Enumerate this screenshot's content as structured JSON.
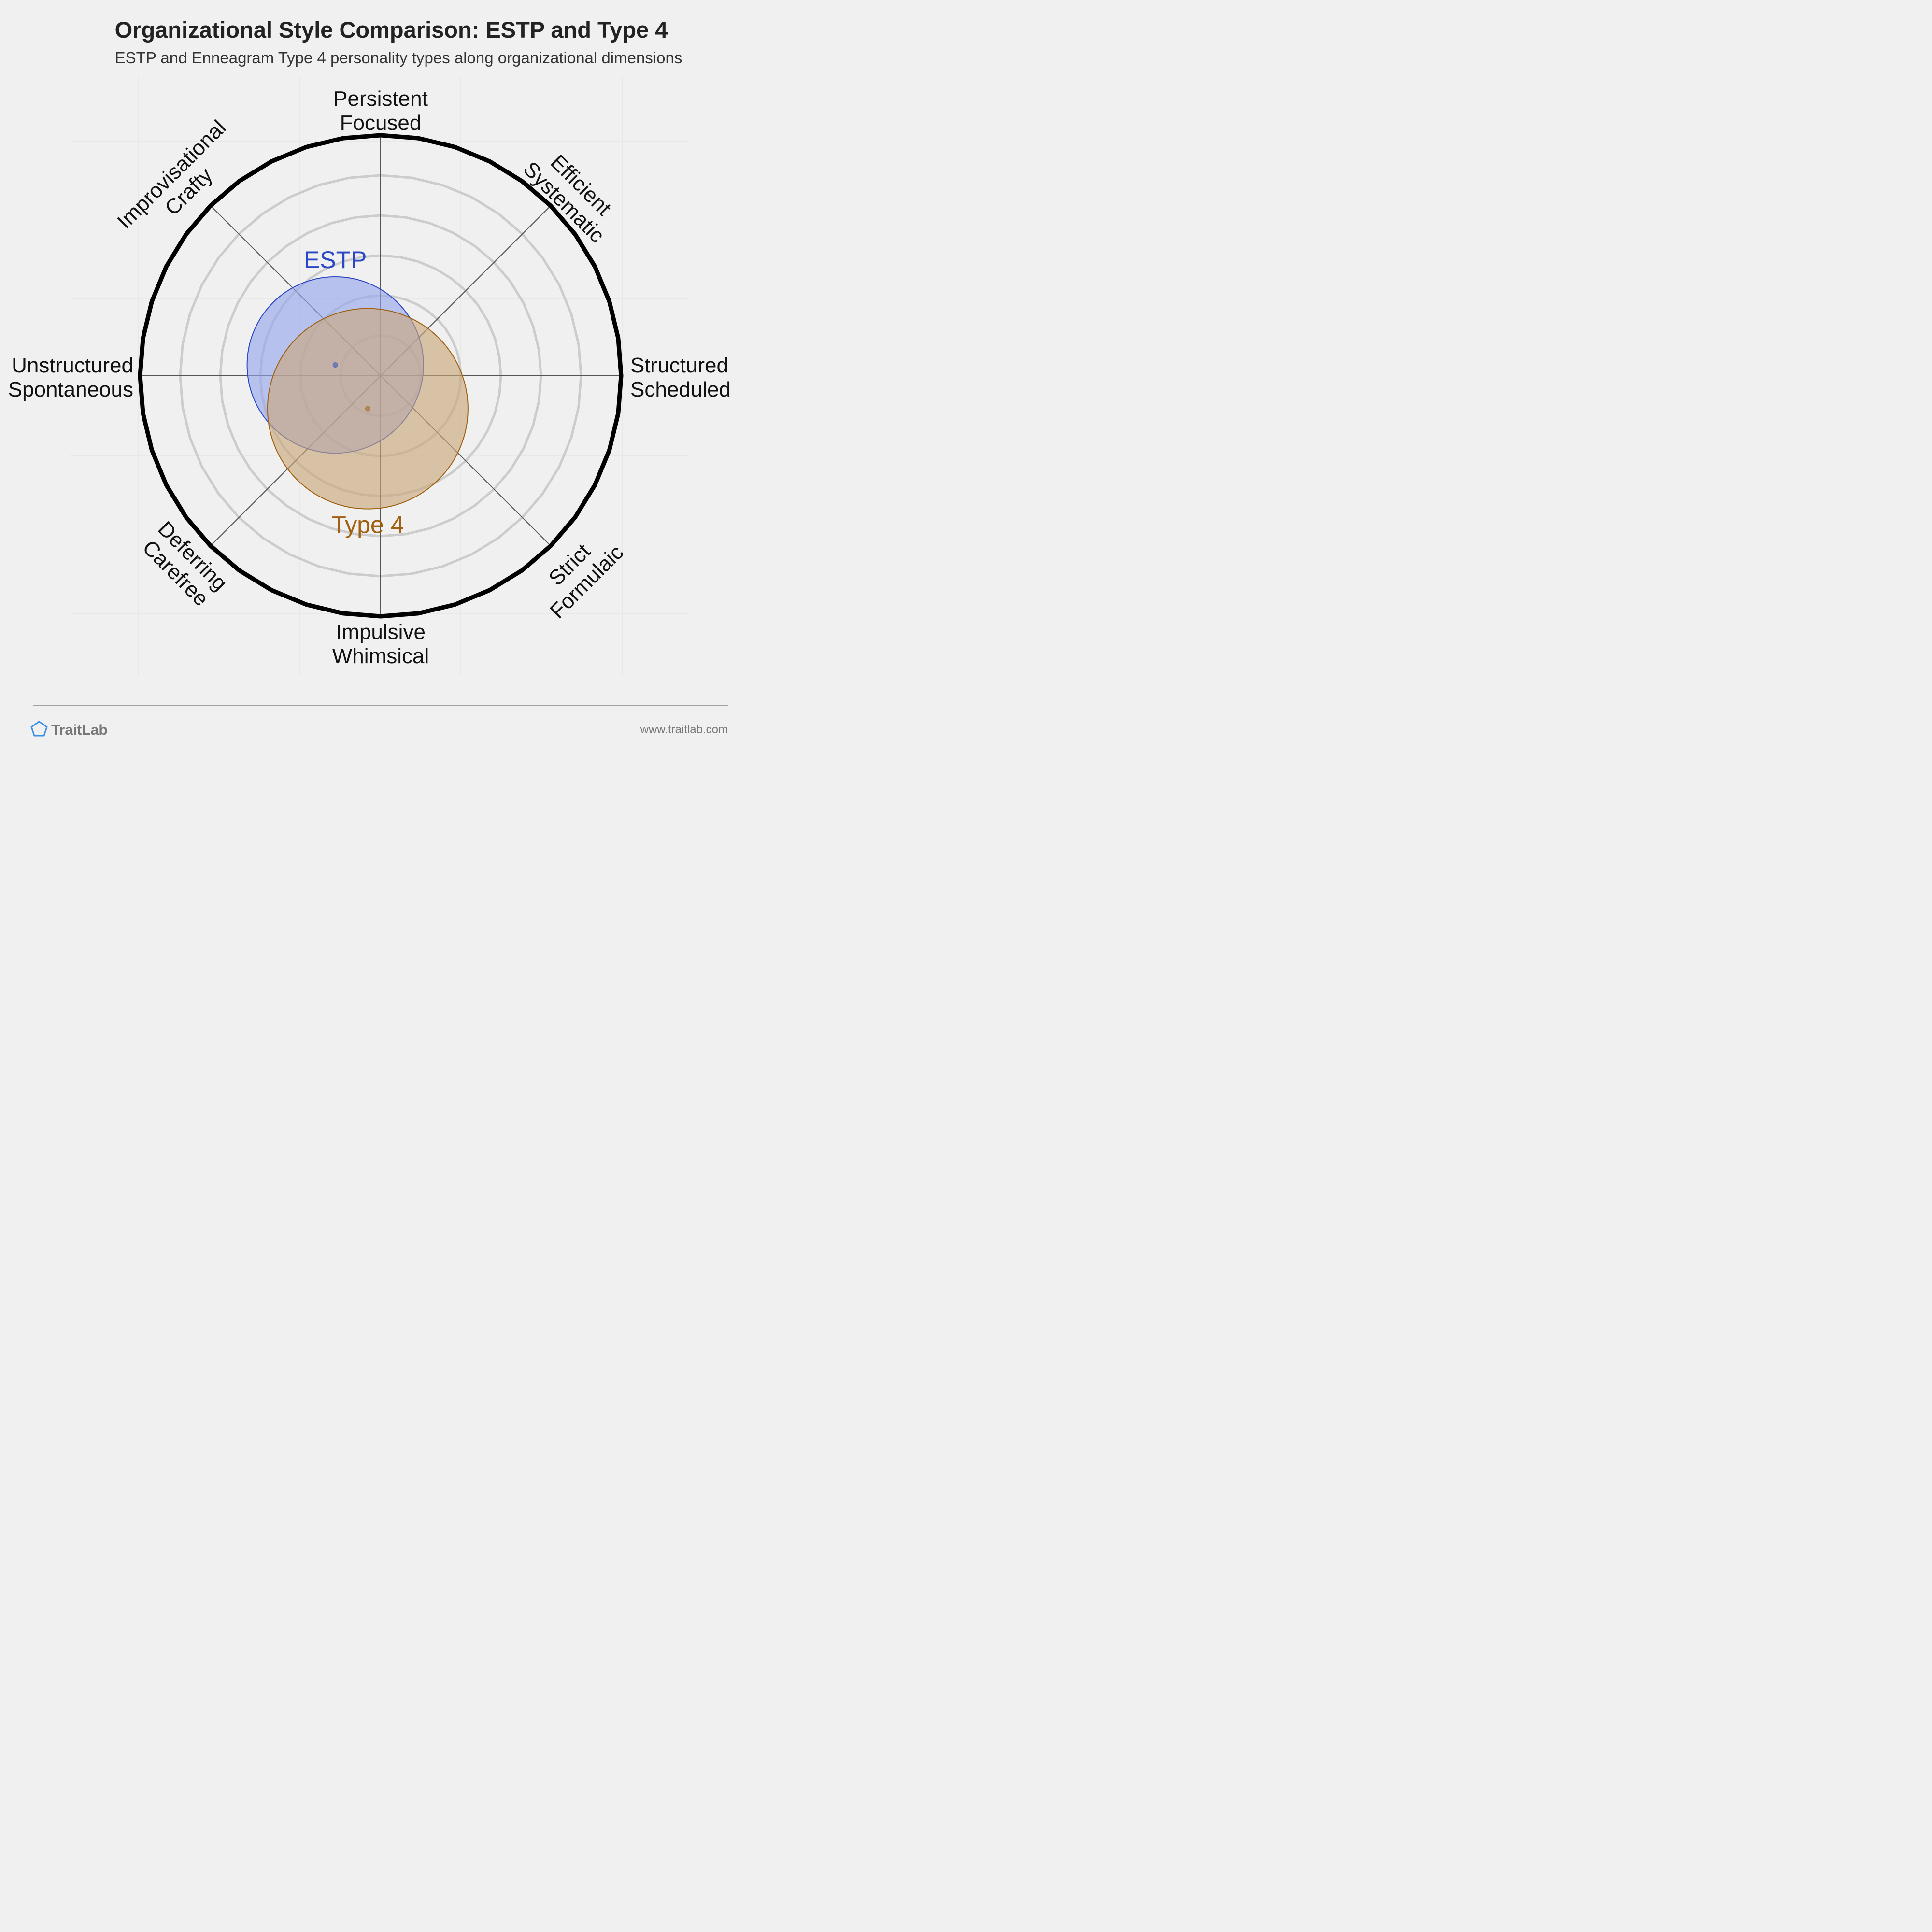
{
  "chart_data": {
    "type": "scatter",
    "title": "Organizational Style Comparison: ESTP and Type 4",
    "subtitle": "ESTP and Enneagram Type 4 personality types along organizational dimensions",
    "axes": {
      "top": [
        "Persistent",
        "Focused"
      ],
      "top_right": [
        "Efficient",
        "Systematic"
      ],
      "right": [
        "Structured",
        "Scheduled"
      ],
      "bottom_right": [
        "Strict",
        "Formulaic"
      ],
      "bottom": [
        "Impulsive",
        "Whimsical"
      ],
      "bottom_left": [
        "Deferring",
        "Carefree"
      ],
      "left": [
        "Unstructured",
        "Spontaneous"
      ],
      "top_left": [
        "Improvisational",
        "Crafty"
      ]
    },
    "xlim": [
      -6,
      6
    ],
    "ylim": [
      -6,
      6
    ],
    "rings": [
      1,
      2,
      3,
      4,
      5,
      6
    ],
    "series": [
      {
        "name": "ESTP",
        "x": -1.13,
        "y": 0.27,
        "radius": 2.2,
        "color": "#2a46c4",
        "fill": "#95a5ee"
      },
      {
        "name": "Type 4",
        "x": -0.32,
        "y": -0.82,
        "radius": 2.5,
        "color": "#a0600f",
        "fill": "#c9a679"
      }
    ]
  },
  "footer": {
    "brand": "TraitLab",
    "url": "www.traitlab.com"
  }
}
